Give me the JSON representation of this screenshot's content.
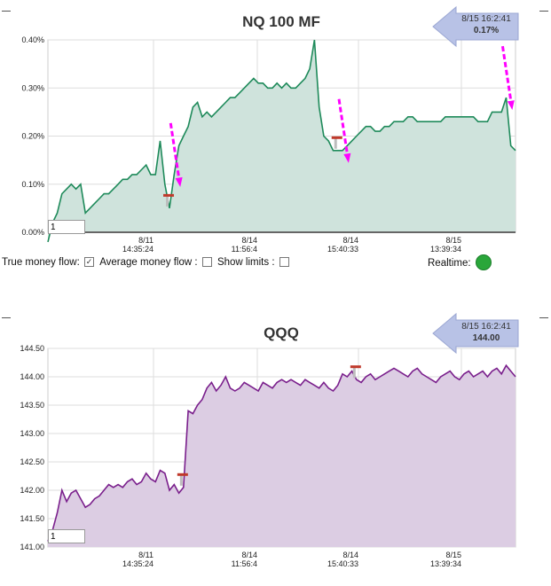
{
  "charts": {
    "mf": {
      "title": "NQ 100 MF",
      "badge_time": "8/15 16:2:41",
      "badge_value": "0.17%",
      "input_value": "1",
      "y_ticks": [
        "0.00%",
        "0.10%",
        "0.20%",
        "0.30%",
        "0.40%"
      ],
      "x_ticks": [
        {
          "date": "8/11",
          "time": "14:35:24"
        },
        {
          "date": "8/14",
          "time": "11:56:4"
        },
        {
          "date": "8/14",
          "time": "15:40:33"
        },
        {
          "date": "8/15",
          "time": "13:39:34"
        }
      ]
    },
    "qqq": {
      "title": "QQQ",
      "badge_time": "8/15 16:2:41",
      "badge_value": "144.00",
      "input_value": "1",
      "y_ticks": [
        "141.00",
        "141.50",
        "142.00",
        "142.50",
        "143.00",
        "143.50",
        "144.00",
        "144.50"
      ],
      "x_ticks": [
        {
          "date": "8/11",
          "time": "14:35:24"
        },
        {
          "date": "8/14",
          "time": "11:56:4"
        },
        {
          "date": "8/14",
          "time": "15:40:33"
        },
        {
          "date": "8/15",
          "time": "13:39:34"
        }
      ]
    }
  },
  "controls": {
    "true_money_flow_label": "True money flow:",
    "true_money_flow_checked": true,
    "average_money_flow_label": "Average money flow :",
    "average_money_flow_checked": false,
    "show_limits_label": "Show limits :",
    "show_limits_checked": false,
    "realtime_label": "Realtime:",
    "realtime_color": "#2aa63a"
  },
  "colors": {
    "mf_line": "#1e8a5a",
    "mf_fill": "#cfe3dc",
    "qqq_line": "#7a1f8c",
    "qqq_fill": "#dccde3",
    "arrow": "#ff00ff",
    "badge": "#b8c2e6",
    "marker": "#c0392b"
  },
  "chart_data": [
    {
      "type": "area",
      "title": "NQ 100 MF",
      "ylim": [
        0.0,
        0.4
      ],
      "xlim": [
        0,
        100
      ],
      "x": [
        0,
        1,
        2,
        3,
        4,
        5,
        6,
        7,
        8,
        9,
        10,
        11,
        12,
        13,
        14,
        15,
        16,
        17,
        18,
        19,
        20,
        21,
        22,
        23,
        24,
        25,
        26,
        27,
        28,
        29,
        30,
        31,
        32,
        33,
        34,
        35,
        36,
        37,
        38,
        39,
        40,
        41,
        42,
        43,
        44,
        45,
        46,
        47,
        48,
        49,
        50,
        51,
        52,
        53,
        54,
        55,
        56,
        57,
        58,
        59,
        60,
        61,
        62,
        63,
        64,
        65,
        66,
        67,
        68,
        69,
        70,
        71,
        72,
        73,
        74,
        75,
        76,
        77,
        78,
        79,
        80,
        81,
        82,
        83,
        84,
        85,
        86,
        87,
        88,
        89,
        90,
        91,
        92,
        93,
        94,
        95,
        96,
        97,
        98,
        99,
        100
      ],
      "y": [
        -0.02,
        0.02,
        0.04,
        0.08,
        0.09,
        0.1,
        0.09,
        0.1,
        0.04,
        0.05,
        0.06,
        0.07,
        0.08,
        0.08,
        0.09,
        0.1,
        0.11,
        0.11,
        0.12,
        0.12,
        0.13,
        0.14,
        0.12,
        0.12,
        0.19,
        0.1,
        0.05,
        0.12,
        0.18,
        0.2,
        0.22,
        0.26,
        0.27,
        0.24,
        0.25,
        0.24,
        0.25,
        0.26,
        0.27,
        0.28,
        0.28,
        0.29,
        0.3,
        0.31,
        0.32,
        0.31,
        0.31,
        0.3,
        0.3,
        0.31,
        0.3,
        0.31,
        0.3,
        0.3,
        0.31,
        0.32,
        0.34,
        0.4,
        0.26,
        0.2,
        0.19,
        0.17,
        0.17,
        0.17,
        0.18,
        0.19,
        0.2,
        0.21,
        0.22,
        0.22,
        0.21,
        0.21,
        0.22,
        0.22,
        0.23,
        0.23,
        0.23,
        0.24,
        0.24,
        0.23,
        0.23,
        0.23,
        0.23,
        0.23,
        0.23,
        0.24,
        0.24,
        0.24,
        0.24,
        0.24,
        0.24,
        0.24,
        0.23,
        0.23,
        0.23,
        0.25,
        0.25,
        0.25,
        0.28,
        0.18,
        0.17
      ],
      "markers_x": [
        26,
        62
      ],
      "arrows_x": [
        27,
        63,
        98
      ]
    },
    {
      "type": "area",
      "title": "QQQ",
      "ylim": [
        141.0,
        144.5
      ],
      "xlim": [
        0,
        100
      ],
      "x": [
        0,
        1,
        2,
        3,
        4,
        5,
        6,
        7,
        8,
        9,
        10,
        11,
        12,
        13,
        14,
        15,
        16,
        17,
        18,
        19,
        20,
        21,
        22,
        23,
        24,
        25,
        26,
        27,
        28,
        29,
        30,
        31,
        32,
        33,
        34,
        35,
        36,
        37,
        38,
        39,
        40,
        41,
        42,
        43,
        44,
        45,
        46,
        47,
        48,
        49,
        50,
        51,
        52,
        53,
        54,
        55,
        56,
        57,
        58,
        59,
        60,
        61,
        62,
        63,
        64,
        65,
        66,
        67,
        68,
        69,
        70,
        71,
        72,
        73,
        74,
        75,
        76,
        77,
        78,
        79,
        80,
        81,
        82,
        83,
        84,
        85,
        86,
        87,
        88,
        89,
        90,
        91,
        92,
        93,
        94,
        95,
        96,
        97,
        98,
        99,
        100
      ],
      "y": [
        141.1,
        141.3,
        141.6,
        142.0,
        141.8,
        141.95,
        142.0,
        141.85,
        141.7,
        141.75,
        141.85,
        141.9,
        142.0,
        142.1,
        142.05,
        142.1,
        142.05,
        142.15,
        142.2,
        142.1,
        142.15,
        142.3,
        142.2,
        142.15,
        142.35,
        142.3,
        142.0,
        142.1,
        141.95,
        142.05,
        143.4,
        143.35,
        143.5,
        143.6,
        143.8,
        143.9,
        143.75,
        143.85,
        144.0,
        143.8,
        143.75,
        143.8,
        143.9,
        143.85,
        143.8,
        143.75,
        143.9,
        143.85,
        143.8,
        143.9,
        143.95,
        143.9,
        143.95,
        143.9,
        143.85,
        143.95,
        143.9,
        143.85,
        143.8,
        143.9,
        143.8,
        143.75,
        143.85,
        144.05,
        144.0,
        144.1,
        143.95,
        143.9,
        144.0,
        144.05,
        143.95,
        144.0,
        144.05,
        144.1,
        144.15,
        144.1,
        144.05,
        144.0,
        144.1,
        144.15,
        144.05,
        144.0,
        143.95,
        143.9,
        144.0,
        144.05,
        144.1,
        144.0,
        143.95,
        144.05,
        144.1,
        144.0,
        144.05,
        144.1,
        144.0,
        144.1,
        144.15,
        144.05,
        144.2,
        144.1,
        144.0
      ],
      "markers_x": [
        29,
        66
      ]
    }
  ]
}
